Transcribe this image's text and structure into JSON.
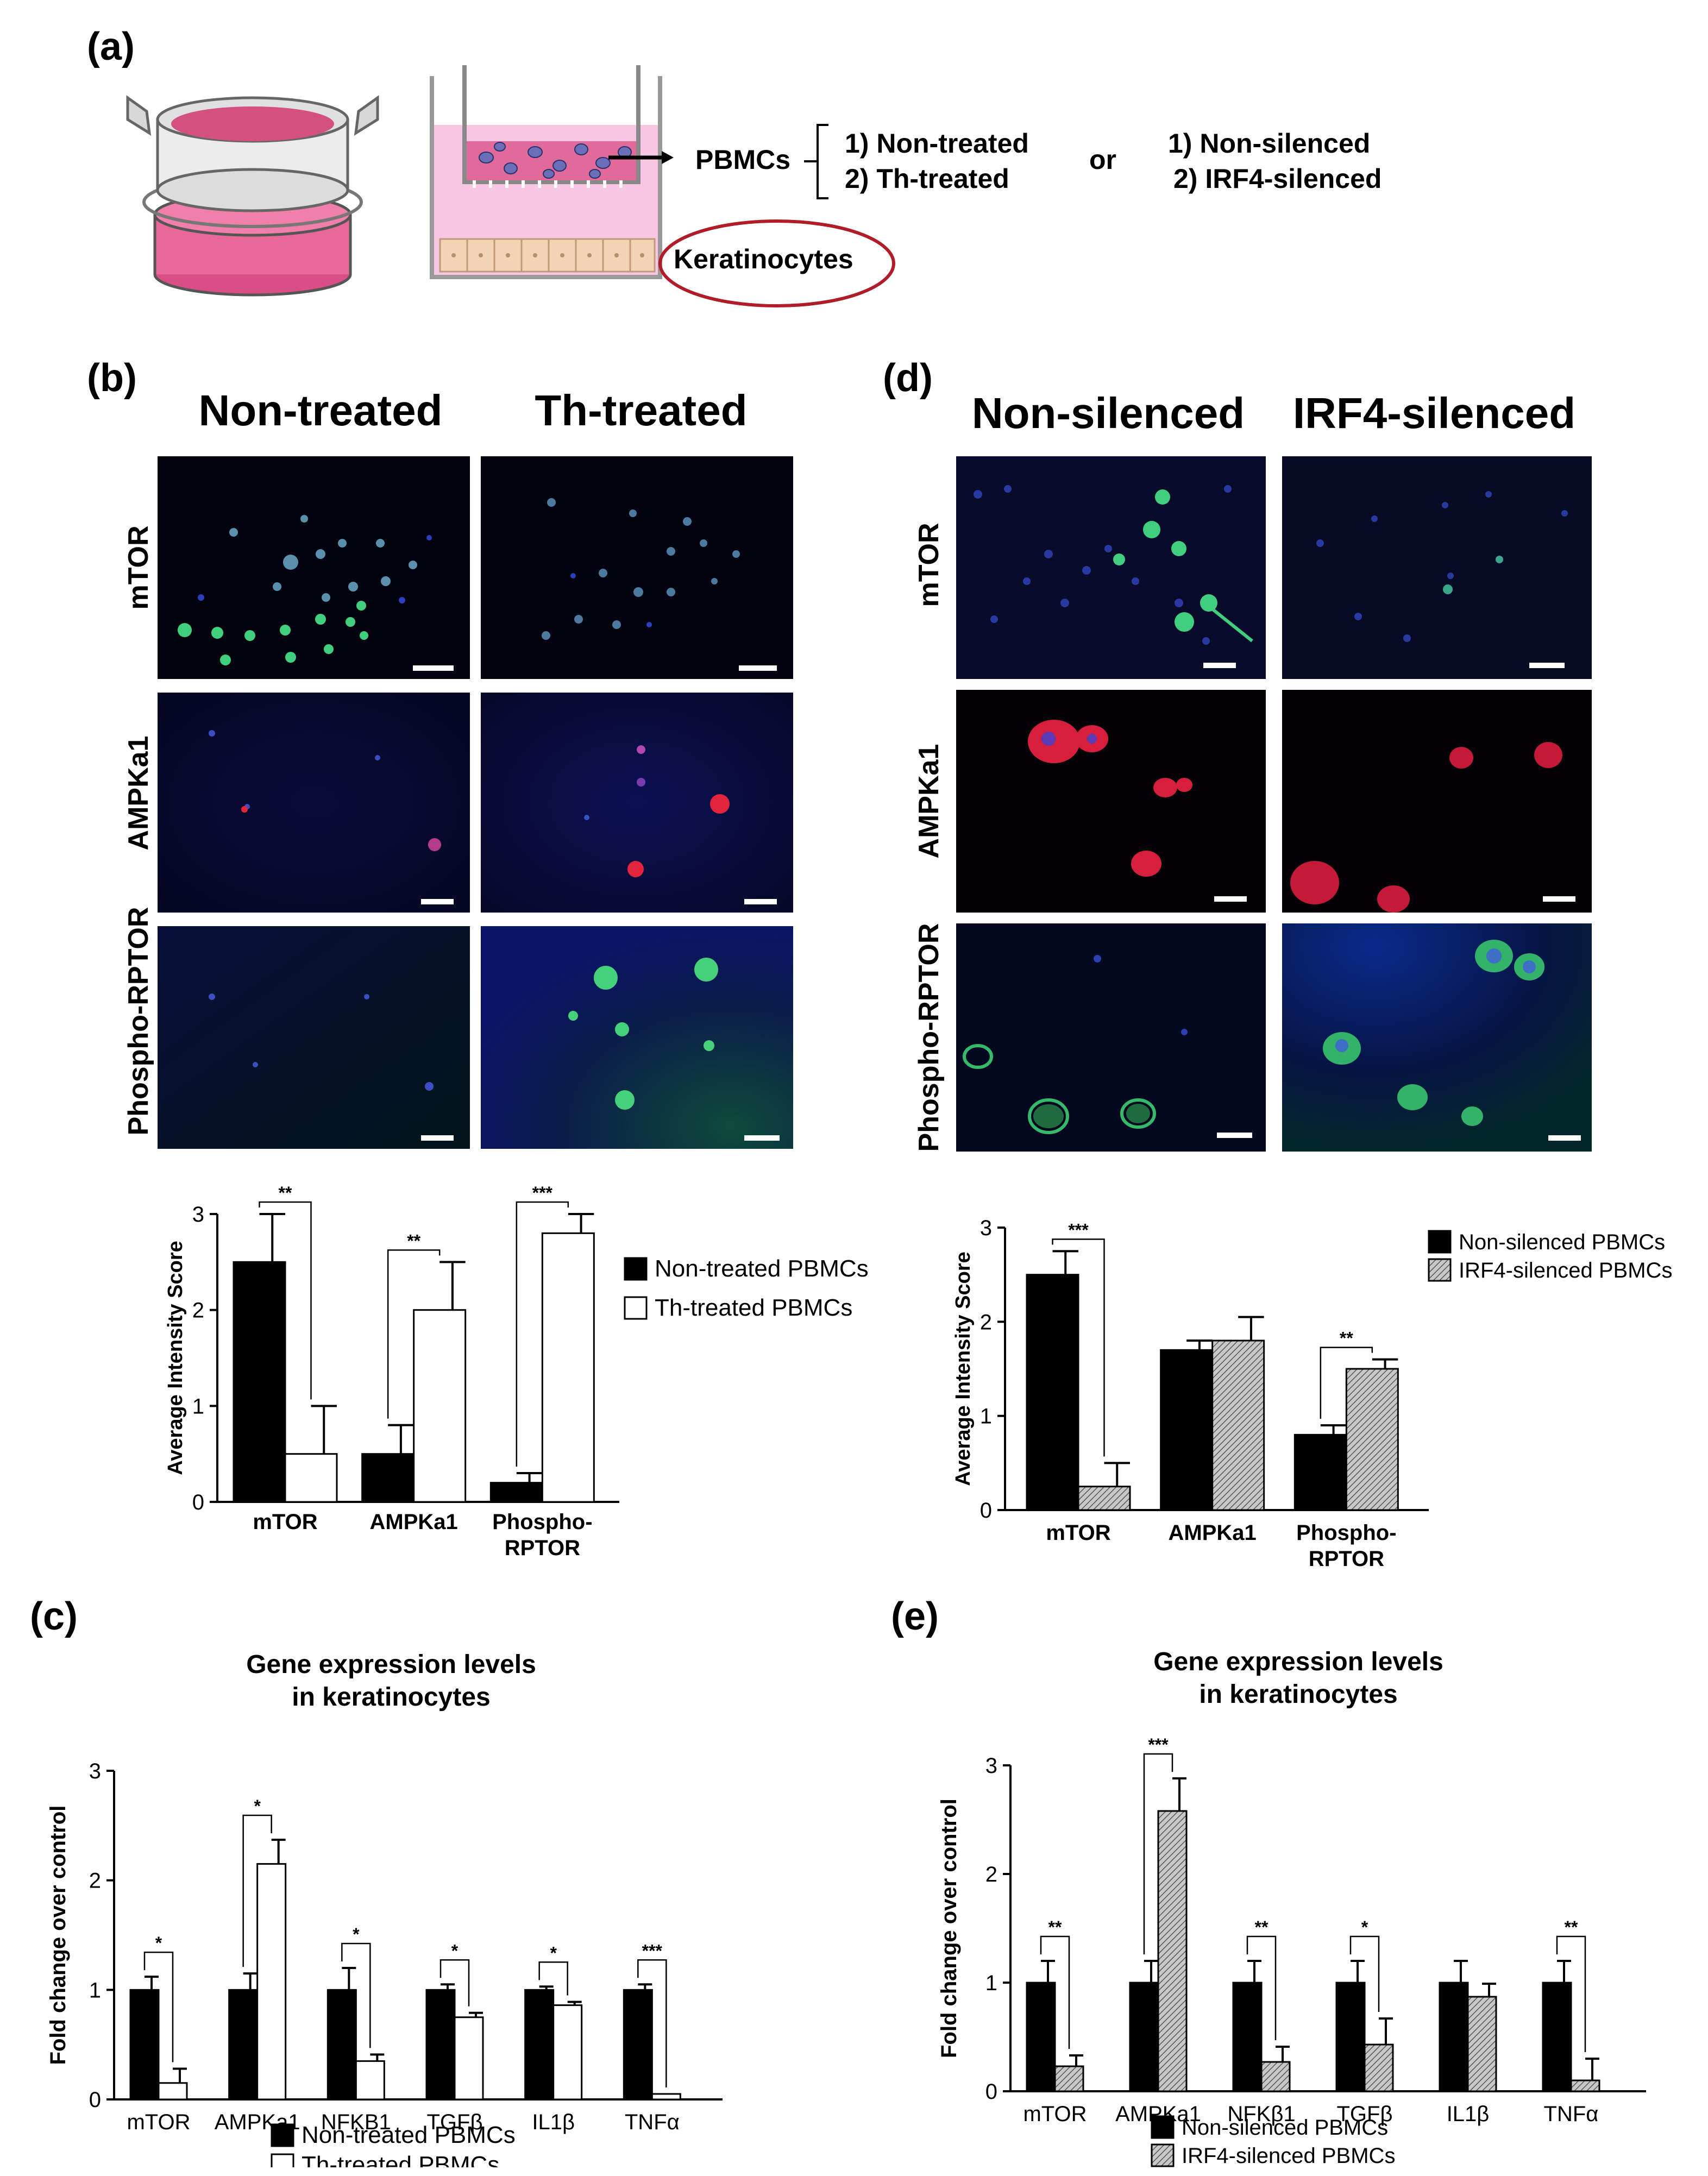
{
  "panel_labels": {
    "a": "(a)",
    "b": "(b)",
    "c": "(c)",
    "d": "(d)",
    "e": "(e)"
  },
  "schematic": {
    "pbmcs": "PBMCs",
    "opt1_a": "1) Non-treated",
    "opt1_b": "2) Th-treated",
    "or": "or",
    "opt2_a": "1) Non-silenced",
    "opt2_b": "2) IRF4-silenced",
    "keratinocytes": "Keratinocytes",
    "colors": {
      "media": "#e8689a",
      "insert_media": "#f7c6e2",
      "keratinocyte_layer": "#f3d3b6",
      "ellipse": "#b01c28"
    }
  },
  "panel_b": {
    "col1": "Non-treated",
    "col2": "Th-treated",
    "rows": [
      "mTOR",
      "AMPKa1",
      "Phospho-RPTOR"
    ]
  },
  "panel_d": {
    "col1": "Non-silenced",
    "col2": "IRF4-silenced",
    "rows": [
      "mTOR",
      "AMPKa1",
      "Phospho-RPTOR"
    ]
  },
  "chart_data": [
    {
      "id": "b",
      "type": "bar",
      "title": "",
      "ylabel": "Average Intensity Score",
      "categories": [
        "mTOR",
        "AMPKa1",
        "Phospho-RPTOR"
      ],
      "category_labels": [
        [
          "mTOR"
        ],
        [
          "AMPKa1"
        ],
        [
          "Phospho-",
          "RPTOR"
        ]
      ],
      "ylim": [
        0,
        3
      ],
      "yticks": [
        "0",
        "1",
        "2",
        "3"
      ],
      "series": [
        {
          "name": "Non-treated PBMCs",
          "values": [
            2.5,
            0.5,
            0.2
          ],
          "errors": [
            0.5,
            0.3,
            0.1
          ],
          "fill": "black"
        },
        {
          "name": "Th-treated PBMCs",
          "values": [
            0.5,
            2.0,
            2.8
          ],
          "errors": [
            0.5,
            0.5,
            0.2
          ],
          "fill": "white"
        }
      ],
      "significance": [
        "**",
        "**",
        "***"
      ],
      "legend": "right"
    },
    {
      "id": "d",
      "type": "bar",
      "title": "",
      "ylabel": "Average Intensity Score",
      "categories": [
        "mTOR",
        "AMPKa1",
        "Phospho-RPTOR"
      ],
      "category_labels": [
        [
          "mTOR"
        ],
        [
          "AMPKa1"
        ],
        [
          "Phospho-",
          "RPTOR"
        ]
      ],
      "ylim": [
        0,
        3
      ],
      "yticks": [
        "0",
        "1",
        "2",
        "3"
      ],
      "series": [
        {
          "name": "Non-silenced PBMCs",
          "values": [
            2.5,
            1.7,
            0.8
          ],
          "errors": [
            0.25,
            0.1,
            0.1
          ],
          "fill": "black"
        },
        {
          "name": "IRF4-silenced PBMCs",
          "values": [
            0.25,
            1.8,
            1.5
          ],
          "errors": [
            0.25,
            0.25,
            0.1
          ],
          "fill": "hatched"
        }
      ],
      "significance": [
        "***",
        "",
        "**"
      ],
      "legend": "top-right"
    },
    {
      "id": "c",
      "type": "bar",
      "title": "Gene expression levels\nin keratinocytes",
      "ylabel": "Fold  change over control",
      "categories": [
        "mTOR",
        "AMPKa1",
        "NFKB1",
        "TGFβ",
        "IL1β",
        "TNFα"
      ],
      "ylim": [
        0,
        3
      ],
      "yticks": [
        "0",
        "1",
        "2",
        "3"
      ],
      "series": [
        {
          "name": "Non-treated PBMCs",
          "values": [
            1.0,
            1.0,
            1.0,
            1.0,
            1.0,
            1.0
          ],
          "errors": [
            0.12,
            0.15,
            0.2,
            0.05,
            0.03,
            0.05
          ],
          "fill": "black"
        },
        {
          "name": "Th-treated PBMCs",
          "values": [
            0.15,
            2.15,
            0.35,
            0.75,
            0.86,
            0.05
          ],
          "errors": [
            0.13,
            0.22,
            0.06,
            0.04,
            0.03,
            0.0
          ],
          "fill": "white"
        }
      ],
      "significance": [
        "*",
        "*",
        "*",
        "*",
        "*",
        "***"
      ],
      "legend": "bottom"
    },
    {
      "id": "e",
      "type": "bar",
      "title": "Gene expression levels\nin keratinocytes",
      "ylabel": "Fold  change over control",
      "categories": [
        "mTOR",
        "AMPKa1",
        "NFKβ1",
        "TGFβ",
        "IL1β",
        "TNFα"
      ],
      "ylim": [
        0,
        3
      ],
      "yticks": [
        "0",
        "1",
        "2",
        "3"
      ],
      "series": [
        {
          "name": "Non-silenced PBMCs",
          "values": [
            1.0,
            1.0,
            1.0,
            1.0,
            1.0,
            1.0
          ],
          "errors": [
            0.2,
            0.2,
            0.2,
            0.2,
            0.2,
            0.2
          ],
          "fill": "black"
        },
        {
          "name": "IRF4-silenced PBMCs",
          "values": [
            0.23,
            2.58,
            0.27,
            0.43,
            0.87,
            0.1
          ],
          "errors": [
            0.1,
            0.3,
            0.14,
            0.24,
            0.12,
            0.2
          ],
          "fill": "hatched"
        }
      ],
      "significance": [
        "**",
        "***",
        "**",
        "*",
        "",
        "**"
      ],
      "legend": "bottom"
    }
  ]
}
